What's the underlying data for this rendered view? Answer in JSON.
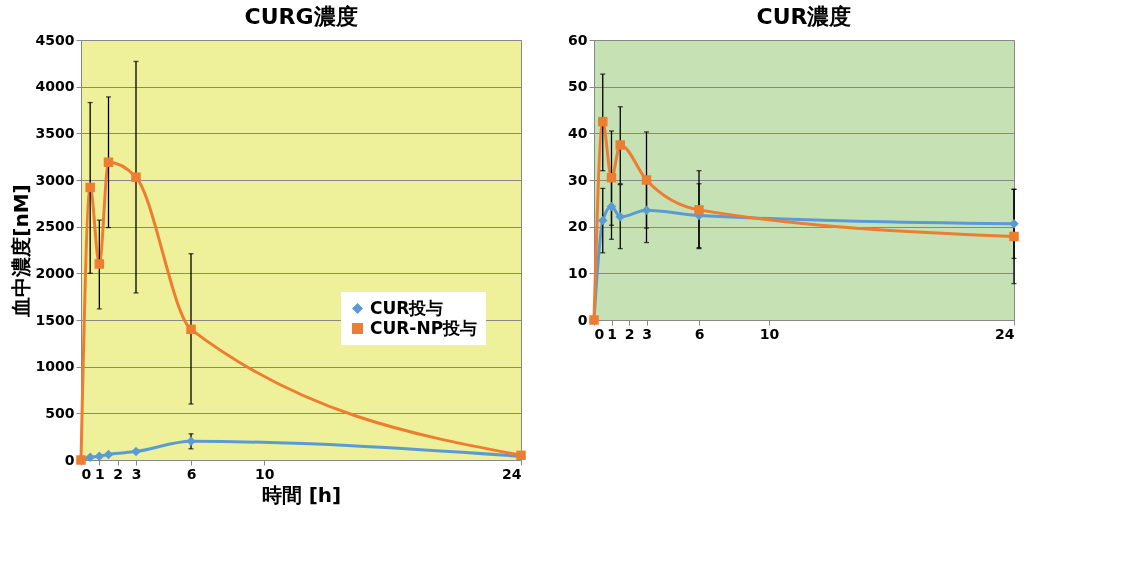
{
  "chart_data": [
    {
      "type": "line",
      "title": "CURG濃度",
      "xlabel": "時間 [h]",
      "ylabel": "血中濃度[nM]",
      "xlim": [
        0,
        24
      ],
      "xticks": [
        0,
        1,
        2,
        3,
        6,
        10,
        24
      ],
      "ylim": [
        0,
        4500
      ],
      "yticks": [
        0,
        500,
        1000,
        1500,
        2000,
        2500,
        3000,
        3500,
        4000,
        4500
      ],
      "grid": "y",
      "legend": "right",
      "line_style": "solid",
      "series": [
        {
          "name": "CUR投与",
          "color": "#5b9bd5",
          "marker": "diamond",
          "x": [
            0,
            0.5,
            1,
            1.5,
            3,
            6,
            24
          ],
          "values": [
            0,
            30,
            40,
            60,
            90,
            200,
            40
          ],
          "errors": [
            null,
            null,
            null,
            null,
            null,
            [
              120,
              280
            ],
            null
          ]
        },
        {
          "name": "CUR-NP投与",
          "color": "#ed7d31",
          "marker": "square",
          "x": [
            0,
            0.5,
            1,
            1.5,
            3,
            6,
            24
          ],
          "values": [
            0,
            2920,
            2100,
            3190,
            3030,
            1400,
            50
          ],
          "errors": [
            null,
            [
              2000,
              3830
            ],
            [
              1620,
              2570
            ],
            [
              2490,
              3890
            ],
            [
              1790,
              4270
            ],
            [
              600,
              2210
            ],
            null
          ]
        }
      ]
    },
    {
      "type": "line",
      "title": "CUR濃度",
      "xlim": [
        0,
        24
      ],
      "xticks": [
        0,
        1,
        2,
        3,
        6,
        10,
        24
      ],
      "ylim": [
        0,
        60
      ],
      "yticks": [
        0,
        10,
        20,
        30,
        40,
        50,
        60
      ],
      "grid": "y",
      "line_style": "solid",
      "series": [
        {
          "color": "#5b9bd5",
          "marker": "diamond",
          "x": [
            0,
            0.5,
            1,
            1.5,
            3,
            6,
            24
          ],
          "values": [
            0,
            21.3,
            24.3,
            22.1,
            23.5,
            22.4,
            20.6
          ],
          "errors": [
            null,
            [
              14.4,
              28.2
            ],
            [
              17.3,
              31
            ],
            [
              15.3,
              29
            ],
            [
              16.6,
              30.4
            ],
            [
              15.5,
              29.2
            ],
            [
              13.2,
              28
            ]
          ]
        },
        {
          "color": "#ed7d31",
          "marker": "square",
          "x": [
            0,
            0.5,
            1,
            1.5,
            3,
            6,
            24
          ],
          "values": [
            0,
            42.5,
            30.5,
            37.5,
            30,
            23.6,
            17.9
          ],
          "errors": [
            null,
            [
              32,
              52.7
            ],
            [
              20.3,
              40.5
            ],
            [
              29.2,
              45.7
            ],
            [
              19.7,
              40.3
            ],
            [
              15.3,
              32
            ],
            [
              7.8,
              28
            ]
          ]
        }
      ]
    }
  ]
}
